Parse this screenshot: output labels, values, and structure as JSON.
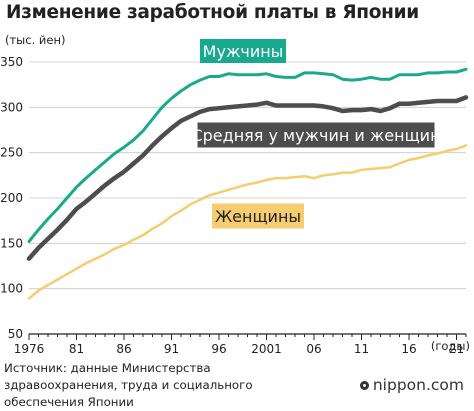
{
  "title": "Изменение заработной платы в Японии",
  "source": "Источник: данные Министерства здравоохранения, труда и социального обеспечения Японии",
  "brand": "nippon.com",
  "chart_data": {
    "type": "line",
    "title": "Изменение заработной платы в Японии",
    "ylabel": "(тыс. йен)",
    "xlabel": "(годы)",
    "ylim": [
      50,
      350
    ],
    "yticks": [
      50,
      100,
      150,
      200,
      250,
      300,
      350
    ],
    "xlim": [
      1976,
      2022
    ],
    "x_ticks": [
      1976,
      1981,
      1986,
      1991,
      1996,
      2001,
      2006,
      2011,
      2016,
      2021
    ],
    "x_tick_labels": [
      "1976",
      "81",
      "86",
      "91",
      "96",
      "2001",
      "06",
      "11",
      "16",
      "21"
    ],
    "grid": true,
    "series": [
      {
        "name": "Мужчины",
        "color": "#19a98f",
        "label_bg": "#19a98f",
        "label_color": "#ffffff",
        "x": [
          1976,
          1977,
          1978,
          1979,
          1980,
          1981,
          1982,
          1983,
          1984,
          1985,
          1986,
          1987,
          1988,
          1989,
          1990,
          1991,
          1992,
          1993,
          1994,
          1995,
          1996,
          1997,
          1998,
          1999,
          2000,
          2001,
          2002,
          2003,
          2004,
          2005,
          2006,
          2007,
          2008,
          2009,
          2010,
          2011,
          2012,
          2013,
          2014,
          2015,
          2016,
          2017,
          2018,
          2019,
          2020,
          2021,
          2022
        ],
        "values": [
          152,
          165,
          177,
          188,
          200,
          212,
          222,
          231,
          240,
          249,
          256,
          264,
          274,
          287,
          300,
          310,
          318,
          325,
          330,
          334,
          334,
          337,
          336,
          336,
          336,
          337,
          334,
          333,
          333,
          338,
          338,
          337,
          336,
          331,
          330,
          331,
          333,
          331,
          331,
          336,
          336,
          336,
          338,
          338,
          339,
          339,
          342
        ]
      },
      {
        "name": "Средняя у мужчин и женщин",
        "color": "#4d4d4d",
        "label_bg": "#4d4d4d",
        "label_color": "#ffffff",
        "x": [
          1976,
          1977,
          1978,
          1979,
          1980,
          1981,
          1982,
          1983,
          1984,
          1985,
          1986,
          1987,
          1988,
          1989,
          1990,
          1991,
          1992,
          1993,
          1994,
          1995,
          1996,
          1997,
          1998,
          1999,
          2000,
          2001,
          2002,
          2003,
          2004,
          2005,
          2006,
          2007,
          2008,
          2009,
          2010,
          2011,
          2012,
          2013,
          2014,
          2015,
          2016,
          2017,
          2018,
          2019,
          2020,
          2021,
          2022
        ],
        "values": [
          133,
          145,
          155,
          165,
          176,
          188,
          196,
          205,
          214,
          222,
          229,
          238,
          247,
          258,
          268,
          277,
          285,
          290,
          295,
          298,
          299,
          300,
          301,
          302,
          303,
          305,
          302,
          302,
          302,
          302,
          302,
          301,
          299,
          296,
          297,
          297,
          298,
          296,
          299,
          304,
          304,
          305,
          306,
          307,
          307,
          307,
          311
        ]
      },
      {
        "name": "Женщины",
        "color": "#f6cd6e",
        "label_bg": "#f6cd6e",
        "label_color": "#222222",
        "x": [
          1976,
          1977,
          1978,
          1979,
          1980,
          1981,
          1982,
          1983,
          1984,
          1985,
          1986,
          1987,
          1988,
          1989,
          1990,
          1991,
          1992,
          1993,
          1994,
          1995,
          1996,
          1997,
          1998,
          1999,
          2000,
          2001,
          2002,
          2003,
          2004,
          2005,
          2006,
          2007,
          2008,
          2009,
          2010,
          2011,
          2012,
          2013,
          2014,
          2015,
          2016,
          2017,
          2018,
          2019,
          2020,
          2021,
          2022
        ],
        "values": [
          89,
          98,
          104,
          110,
          116,
          122,
          128,
          133,
          138,
          144,
          148,
          154,
          159,
          166,
          172,
          180,
          186,
          193,
          198,
          203,
          206,
          209,
          212,
          215,
          217,
          220,
          222,
          222,
          223,
          224,
          222,
          225,
          226,
          228,
          228,
          231,
          232,
          233,
          234,
          238,
          242,
          244,
          247,
          249,
          252,
          254,
          258
        ]
      }
    ]
  }
}
